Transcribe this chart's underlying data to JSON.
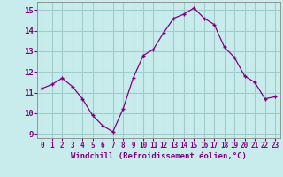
{
  "x": [
    0,
    1,
    2,
    3,
    4,
    5,
    6,
    7,
    8,
    9,
    10,
    11,
    12,
    13,
    14,
    15,
    16,
    17,
    18,
    19,
    20,
    21,
    22,
    23
  ],
  "y": [
    11.2,
    11.4,
    11.7,
    11.3,
    10.7,
    9.9,
    9.4,
    9.1,
    10.2,
    11.7,
    12.8,
    13.1,
    13.9,
    14.6,
    14.8,
    15.1,
    14.6,
    14.3,
    13.2,
    12.7,
    11.8,
    11.5,
    10.7,
    10.8
  ],
  "line_color": "#800080",
  "marker": "+",
  "bg_color": "#c8ecec",
  "grid_color": "#a0cccc",
  "xlabel": "Windchill (Refroidissement éolien,°C)",
  "xlabel_color": "#800080",
  "tick_color": "#800080",
  "ylim": [
    8.8,
    15.4
  ],
  "yticks": [
    9,
    10,
    11,
    12,
    13,
    14,
    15
  ],
  "xlim": [
    -0.5,
    23.5
  ],
  "xticks": [
    0,
    1,
    2,
    3,
    4,
    5,
    6,
    7,
    8,
    9,
    10,
    11,
    12,
    13,
    14,
    15,
    16,
    17,
    18,
    19,
    20,
    21,
    22,
    23
  ],
  "xlabel_fontsize": 6.5,
  "ytick_fontsize": 6.5,
  "xtick_fontsize": 5.5
}
